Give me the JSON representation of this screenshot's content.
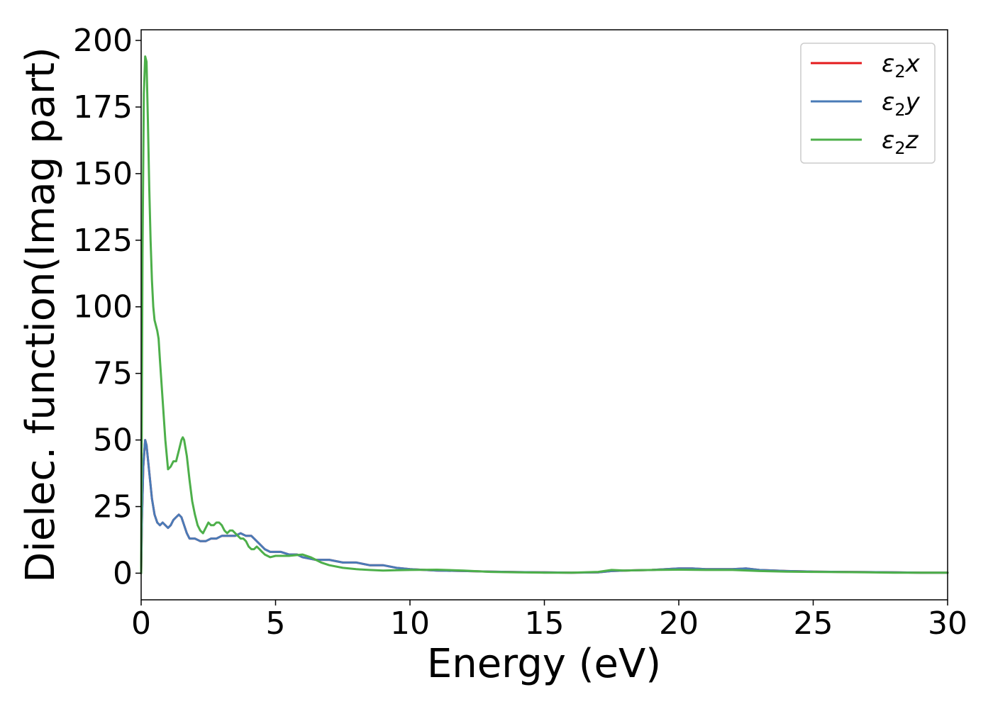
{
  "chart_data": {
    "type": "line",
    "title": "",
    "xlabel": "Energy (eV)",
    "ylabel": "Dielec. function(Imag part)",
    "xlim": [
      0,
      30
    ],
    "ylim": [
      -10,
      204
    ],
    "xticks": [
      0,
      5,
      10,
      15,
      20,
      25,
      30
    ],
    "yticks": [
      0,
      25,
      50,
      75,
      100,
      125,
      150,
      175,
      200
    ],
    "xtick_labels": [
      "0",
      "5",
      "10",
      "15",
      "20",
      "25",
      "30"
    ],
    "ytick_labels": [
      "0",
      "25",
      "50",
      "75",
      "100",
      "125",
      "150",
      "175",
      "200"
    ],
    "grid": false,
    "legend_position": "top-right",
    "series": [
      {
        "name": "ε₂x",
        "legend_main": "ε",
        "legend_sub": "2",
        "legend_suffix": "x",
        "color": "#e41a1c",
        "points": [
          [
            0,
            0
          ],
          [
            0.03,
            20
          ],
          [
            0.08,
            40
          ],
          [
            0.15,
            50
          ],
          [
            0.2,
            48
          ],
          [
            0.3,
            38
          ],
          [
            0.4,
            28
          ],
          [
            0.5,
            22
          ],
          [
            0.6,
            19
          ],
          [
            0.7,
            18
          ],
          [
            0.8,
            19
          ],
          [
            0.9,
            18
          ],
          [
            1.0,
            17
          ],
          [
            1.1,
            18
          ],
          [
            1.2,
            20
          ],
          [
            1.3,
            21
          ],
          [
            1.4,
            22
          ],
          [
            1.5,
            21
          ],
          [
            1.6,
            18
          ],
          [
            1.7,
            15
          ],
          [
            1.8,
            13
          ],
          [
            2.0,
            13
          ],
          [
            2.2,
            12
          ],
          [
            2.4,
            12
          ],
          [
            2.6,
            13
          ],
          [
            2.8,
            13
          ],
          [
            3.0,
            14
          ],
          [
            3.3,
            14
          ],
          [
            3.5,
            14
          ],
          [
            3.7,
            15
          ],
          [
            3.9,
            14
          ],
          [
            4.1,
            14
          ],
          [
            4.2,
            13
          ],
          [
            4.4,
            11
          ],
          [
            4.6,
            9
          ],
          [
            4.8,
            8
          ],
          [
            5.0,
            8
          ],
          [
            5.2,
            8
          ],
          [
            5.5,
            7
          ],
          [
            5.8,
            7
          ],
          [
            6.0,
            6
          ],
          [
            6.5,
            5
          ],
          [
            7.0,
            5
          ],
          [
            7.5,
            4
          ],
          [
            8.0,
            4
          ],
          [
            8.5,
            3
          ],
          [
            9.0,
            3
          ],
          [
            9.5,
            2
          ],
          [
            10.0,
            1.5
          ],
          [
            11.0,
            1
          ],
          [
            12.0,
            0.8
          ],
          [
            13.0,
            0.6
          ],
          [
            14.0,
            0.4
          ],
          [
            15.0,
            0.3
          ],
          [
            16.0,
            0.2
          ],
          [
            17.0,
            0.3
          ],
          [
            17.5,
            0.8
          ],
          [
            18.0,
            1.0
          ],
          [
            19.0,
            1.2
          ],
          [
            20.0,
            1.8
          ],
          [
            20.5,
            1.8
          ],
          [
            21.0,
            1.5
          ],
          [
            22.0,
            1.5
          ],
          [
            22.5,
            1.8
          ],
          [
            23.0,
            1.2
          ],
          [
            24.0,
            0.8
          ],
          [
            25.0,
            0.6
          ],
          [
            26.0,
            0.5
          ],
          [
            27.0,
            0.4
          ],
          [
            28.0,
            0.3
          ],
          [
            29.0,
            0.2
          ],
          [
            30.0,
            0.2
          ]
        ]
      },
      {
        "name": "ε₂y",
        "legend_main": "ε",
        "legend_sub": "2",
        "legend_suffix": "y",
        "color": "#4a7bb7",
        "points": [
          [
            0,
            0
          ],
          [
            0.03,
            20
          ],
          [
            0.08,
            40
          ],
          [
            0.15,
            50
          ],
          [
            0.2,
            48
          ],
          [
            0.3,
            38
          ],
          [
            0.4,
            28
          ],
          [
            0.5,
            22
          ],
          [
            0.6,
            19
          ],
          [
            0.7,
            18
          ],
          [
            0.8,
            19
          ],
          [
            0.9,
            18
          ],
          [
            1.0,
            17
          ],
          [
            1.1,
            18
          ],
          [
            1.2,
            20
          ],
          [
            1.3,
            21
          ],
          [
            1.4,
            22
          ],
          [
            1.5,
            21
          ],
          [
            1.6,
            18
          ],
          [
            1.7,
            15
          ],
          [
            1.8,
            13
          ],
          [
            2.0,
            13
          ],
          [
            2.2,
            12
          ],
          [
            2.4,
            12
          ],
          [
            2.6,
            13
          ],
          [
            2.8,
            13
          ],
          [
            3.0,
            14
          ],
          [
            3.3,
            14
          ],
          [
            3.5,
            14
          ],
          [
            3.7,
            15
          ],
          [
            3.9,
            14
          ],
          [
            4.1,
            14
          ],
          [
            4.2,
            13
          ],
          [
            4.4,
            11
          ],
          [
            4.6,
            9
          ],
          [
            4.8,
            8
          ],
          [
            5.0,
            8
          ],
          [
            5.2,
            8
          ],
          [
            5.5,
            7
          ],
          [
            5.8,
            7
          ],
          [
            6.0,
            6
          ],
          [
            6.5,
            5
          ],
          [
            7.0,
            5
          ],
          [
            7.5,
            4
          ],
          [
            8.0,
            4
          ],
          [
            8.5,
            3
          ],
          [
            9.0,
            3
          ],
          [
            9.5,
            2
          ],
          [
            10.0,
            1.5
          ],
          [
            11.0,
            1
          ],
          [
            12.0,
            0.8
          ],
          [
            13.0,
            0.6
          ],
          [
            14.0,
            0.4
          ],
          [
            15.0,
            0.3
          ],
          [
            16.0,
            0.2
          ],
          [
            17.0,
            0.3
          ],
          [
            17.5,
            0.8
          ],
          [
            18.0,
            1.0
          ],
          [
            19.0,
            1.2
          ],
          [
            20.0,
            1.8
          ],
          [
            20.5,
            1.8
          ],
          [
            21.0,
            1.5
          ],
          [
            22.0,
            1.5
          ],
          [
            22.5,
            1.8
          ],
          [
            23.0,
            1.2
          ],
          [
            24.0,
            0.8
          ],
          [
            25.0,
            0.6
          ],
          [
            26.0,
            0.5
          ],
          [
            27.0,
            0.4
          ],
          [
            28.0,
            0.3
          ],
          [
            29.0,
            0.2
          ],
          [
            30.0,
            0.2
          ]
        ]
      },
      {
        "name": "ε₂z",
        "legend_main": "ε",
        "legend_sub": "2",
        "legend_suffix": "z",
        "color": "#4daf4a",
        "points": [
          [
            0,
            0
          ],
          [
            0.02,
            50
          ],
          [
            0.05,
            120
          ],
          [
            0.1,
            180
          ],
          [
            0.15,
            194
          ],
          [
            0.2,
            192
          ],
          [
            0.25,
            170
          ],
          [
            0.3,
            145
          ],
          [
            0.35,
            125
          ],
          [
            0.4,
            110
          ],
          [
            0.45,
            100
          ],
          [
            0.5,
            95
          ],
          [
            0.55,
            93
          ],
          [
            0.6,
            91
          ],
          [
            0.65,
            88
          ],
          [
            0.7,
            80
          ],
          [
            0.8,
            65
          ],
          [
            0.9,
            50
          ],
          [
            1.0,
            39
          ],
          [
            1.1,
            40
          ],
          [
            1.2,
            42
          ],
          [
            1.3,
            42
          ],
          [
            1.4,
            46
          ],
          [
            1.5,
            50
          ],
          [
            1.55,
            51
          ],
          [
            1.6,
            50
          ],
          [
            1.7,
            44
          ],
          [
            1.8,
            35
          ],
          [
            1.9,
            27
          ],
          [
            2.0,
            22
          ],
          [
            2.1,
            18
          ],
          [
            2.2,
            16
          ],
          [
            2.3,
            15
          ],
          [
            2.4,
            17
          ],
          [
            2.5,
            19
          ],
          [
            2.6,
            18
          ],
          [
            2.7,
            18
          ],
          [
            2.8,
            19
          ],
          [
            2.9,
            19
          ],
          [
            3.0,
            18
          ],
          [
            3.1,
            16
          ],
          [
            3.2,
            15
          ],
          [
            3.3,
            16
          ],
          [
            3.4,
            16
          ],
          [
            3.5,
            15
          ],
          [
            3.6,
            14
          ],
          [
            3.7,
            13
          ],
          [
            3.8,
            13
          ],
          [
            3.9,
            12
          ],
          [
            4.0,
            10
          ],
          [
            4.1,
            9
          ],
          [
            4.2,
            9
          ],
          [
            4.3,
            10
          ],
          [
            4.4,
            9
          ],
          [
            4.5,
            8
          ],
          [
            4.6,
            7
          ],
          [
            4.8,
            6
          ],
          [
            5.0,
            6.5
          ],
          [
            5.5,
            6.5
          ],
          [
            6.0,
            7
          ],
          [
            6.3,
            6
          ],
          [
            6.7,
            4
          ],
          [
            7.0,
            3
          ],
          [
            7.5,
            2
          ],
          [
            8.0,
            1.5
          ],
          [
            8.5,
            1.2
          ],
          [
            9.0,
            1.0
          ],
          [
            9.5,
            1.1
          ],
          [
            10.0,
            1.2
          ],
          [
            11.0,
            1.3
          ],
          [
            12.0,
            1.0
          ],
          [
            13.0,
            0.5
          ],
          [
            14.0,
            0.3
          ],
          [
            15.0,
            0.2
          ],
          [
            16.0,
            0.2
          ],
          [
            17.0,
            0.5
          ],
          [
            17.5,
            1.2
          ],
          [
            18.0,
            1.0
          ],
          [
            19.0,
            1.2
          ],
          [
            20.0,
            1.3
          ],
          [
            21.0,
            1.2
          ],
          [
            22.0,
            1.2
          ],
          [
            23.0,
            0.8
          ],
          [
            24.0,
            0.6
          ],
          [
            25.0,
            0.5
          ],
          [
            26.0,
            0.4
          ],
          [
            27.0,
            0.3
          ],
          [
            28.0,
            0.2
          ],
          [
            29.0,
            0.2
          ],
          [
            30.0,
            0.2
          ]
        ]
      }
    ]
  }
}
